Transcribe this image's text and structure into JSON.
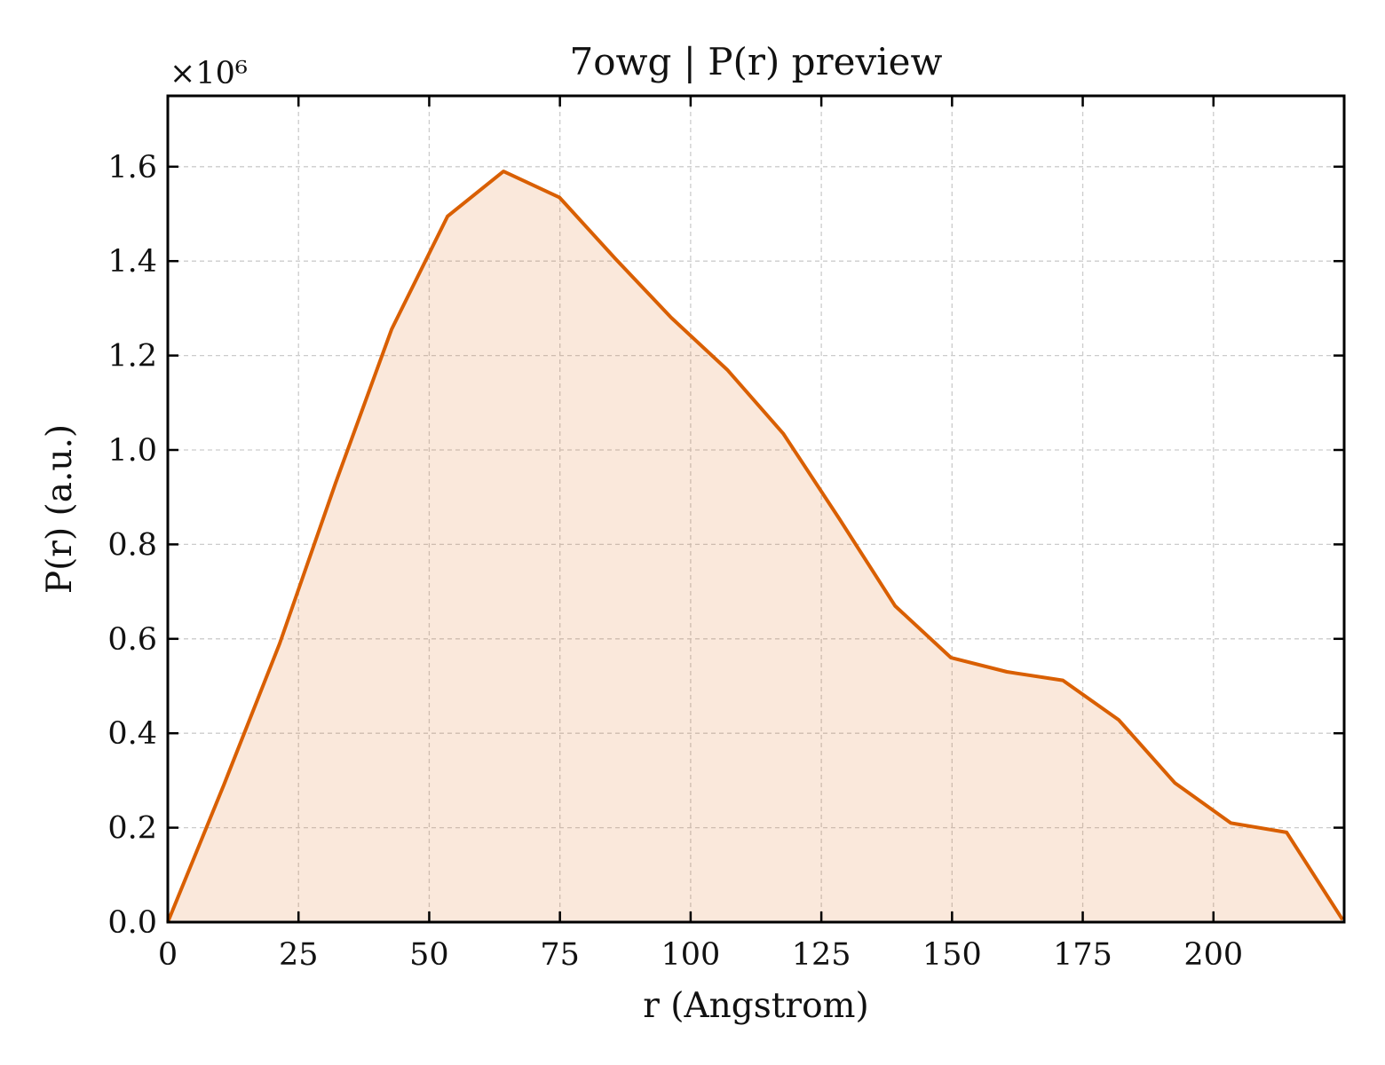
{
  "chart_data": {
    "type": "area",
    "title": "7owg | P(r) preview",
    "xlabel": "r (Angstrom)",
    "ylabel": "P(r) (a.u.)",
    "y_scale_label": "×10⁶",
    "y_scale_factor": 1000000,
    "xlim": [
      0,
      225
    ],
    "ylim": [
      0,
      1750000
    ],
    "xticks": [
      0,
      25,
      50,
      75,
      100,
      125,
      150,
      175,
      200
    ],
    "xtick_labels": [
      "0",
      "25",
      "50",
      "75",
      "100",
      "125",
      "150",
      "175",
      "200"
    ],
    "yticks": [
      0,
      200000,
      400000,
      600000,
      800000,
      1000000,
      1200000,
      1400000,
      1600000
    ],
    "ytick_labels": [
      "0.0",
      "0.2",
      "0.4",
      "0.6",
      "0.8",
      "1.0",
      "1.2",
      "1.4",
      "1.6"
    ],
    "grid": true,
    "line_color": "#d95f02",
    "fill_color": "#d95f02",
    "series": [
      {
        "x": [
          0,
          10.7,
          21.4,
          32.1,
          42.8,
          53.5,
          64.2,
          74.9,
          85.6,
          96.3,
          107.0,
          117.7,
          128.4,
          139.1,
          149.8,
          160.5,
          171.2,
          181.9,
          192.6,
          203.3,
          214.0,
          224.7
        ],
        "values": [
          0,
          290000,
          590000,
          930000,
          1255000,
          1495000,
          1590000,
          1535000,
          1405000,
          1280000,
          1170000,
          1035000,
          855000,
          670000,
          560000,
          530000,
          512000,
          428000,
          295000,
          210000,
          190000,
          5000
        ]
      }
    ]
  }
}
